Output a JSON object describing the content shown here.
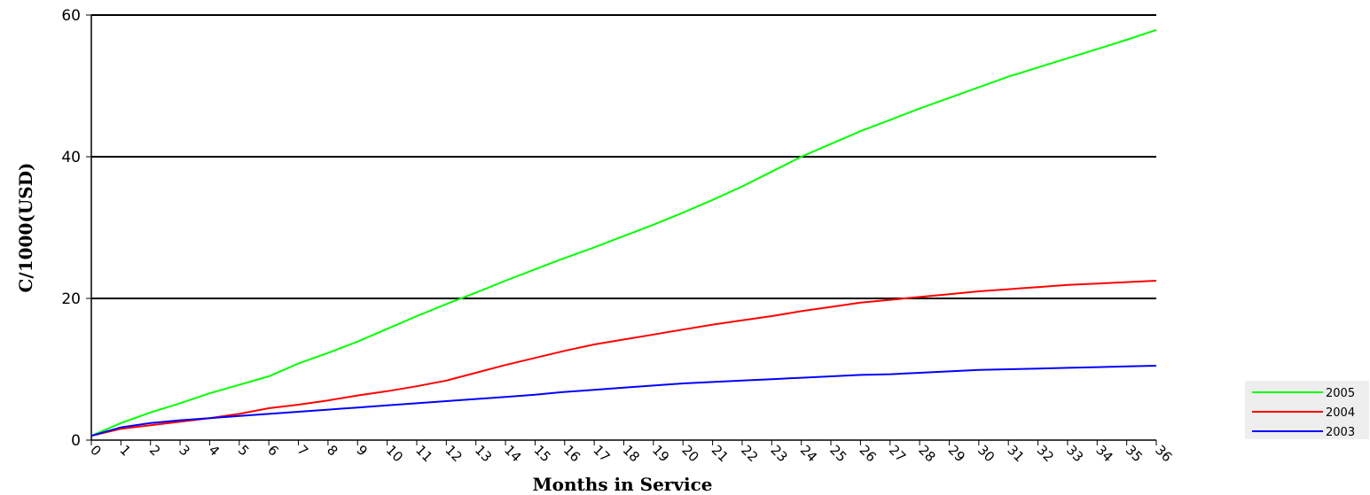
{
  "chart_data": {
    "type": "line",
    "xlabel": "Months in Service",
    "ylabel": "C/1000(USD)",
    "x": [
      0,
      1,
      2,
      3,
      4,
      5,
      6,
      7,
      8,
      9,
      10,
      11,
      12,
      13,
      14,
      15,
      16,
      17,
      18,
      19,
      20,
      21,
      22,
      23,
      24,
      25,
      26,
      27,
      28,
      29,
      30,
      31,
      32,
      33,
      34,
      35,
      36
    ],
    "x_tick_labels": [
      "0",
      "1",
      "2",
      "3",
      "4",
      "5",
      "6",
      "7",
      "8",
      "9",
      "10",
      "11",
      "12",
      "13",
      "14",
      "15",
      "16",
      "17",
      "18",
      "19",
      "20",
      "21",
      "22",
      "23",
      "24",
      "25",
      "26",
      "27",
      "28",
      "29",
      "30",
      "31",
      "32",
      "33",
      "34",
      "35",
      "36"
    ],
    "ylim": [
      0,
      60
    ],
    "y_ticks": [
      0,
      20,
      40,
      60
    ],
    "grid": "horizontal",
    "legend_position": "bottom-right",
    "series": [
      {
        "name": "2005",
        "color": "#00ff00",
        "values": [
          0.6,
          2.4,
          3.9,
          5.2,
          6.6,
          7.8,
          9.0,
          10.8,
          12.3,
          13.9,
          15.7,
          17.5,
          19.2,
          20.8,
          22.5,
          24.1,
          25.7,
          27.2,
          28.8,
          30.4,
          32.1,
          33.9,
          35.8,
          37.9,
          40.0,
          41.8,
          43.6,
          45.2,
          46.8,
          48.3,
          49.8,
          51.3,
          52.6,
          53.9,
          55.2,
          56.5,
          57.9
        ]
      },
      {
        "name": "2004",
        "color": "#ff0000",
        "values": [
          0.6,
          1.6,
          2.1,
          2.6,
          3.1,
          3.7,
          4.5,
          5.0,
          5.6,
          6.3,
          6.9,
          7.6,
          8.4,
          9.5,
          10.6,
          11.6,
          12.6,
          13.5,
          14.2,
          14.9,
          15.6,
          16.3,
          16.9,
          17.5,
          18.2,
          18.8,
          19.4,
          19.8,
          20.2,
          20.6,
          21.0,
          21.3,
          21.6,
          21.9,
          22.1,
          22.3,
          22.5
        ]
      },
      {
        "name": "2003",
        "color": "#0000ff",
        "values": [
          0.6,
          1.8,
          2.4,
          2.8,
          3.1,
          3.4,
          3.7,
          4.0,
          4.3,
          4.6,
          4.9,
          5.2,
          5.5,
          5.8,
          6.1,
          6.4,
          6.8,
          7.1,
          7.4,
          7.7,
          8.0,
          8.2,
          8.4,
          8.6,
          8.8,
          9.0,
          9.2,
          9.3,
          9.5,
          9.7,
          9.9,
          10.0,
          10.1,
          10.2,
          10.3,
          10.4,
          10.5
        ]
      }
    ]
  }
}
